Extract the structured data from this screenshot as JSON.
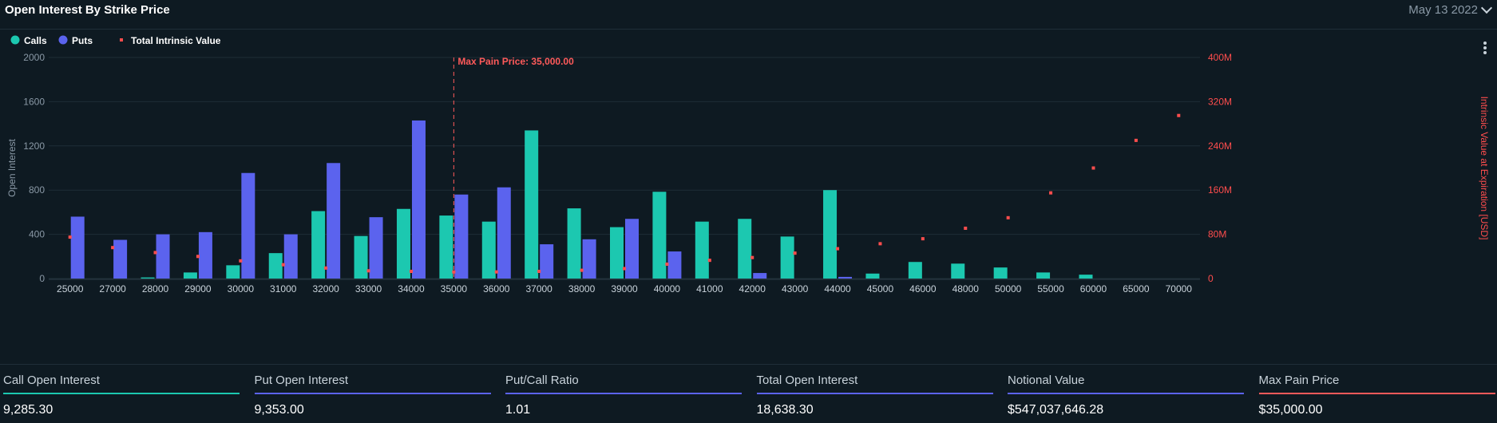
{
  "header": {
    "title": "Open Interest By Strike Price",
    "date": "May 13 2022"
  },
  "legend": [
    {
      "label": "Calls",
      "color": "#1cc8b0",
      "shape": "circle"
    },
    {
      "label": "Puts",
      "color": "#5b63ee",
      "shape": "circle"
    },
    {
      "label": "Total Intrinsic Value",
      "color": "#ff4d4d",
      "shape": "square"
    }
  ],
  "chart_data": {
    "type": "bar",
    "categories": [
      "25000",
      "27000",
      "28000",
      "29000",
      "30000",
      "31000",
      "32000",
      "33000",
      "34000",
      "35000",
      "36000",
      "37000",
      "38000",
      "39000",
      "40000",
      "41000",
      "42000",
      "43000",
      "44000",
      "45000",
      "46000",
      "48000",
      "50000",
      "55000",
      "60000",
      "65000",
      "70000"
    ],
    "series": [
      {
        "name": "Calls",
        "color": "#1cc8b0",
        "axis": "left",
        "values": [
          0,
          0,
          10,
          55,
          120,
          230,
          610,
          385,
          630,
          570,
          515,
          1340,
          635,
          465,
          785,
          515,
          540,
          380,
          800,
          45,
          150,
          135,
          100,
          55,
          35,
          0,
          0
        ]
      },
      {
        "name": "Puts",
        "color": "#5b63ee",
        "axis": "left",
        "values": [
          560,
          350,
          400,
          420,
          955,
          400,
          1045,
          555,
          1430,
          760,
          825,
          310,
          355,
          540,
          245,
          0,
          50,
          0,
          15,
          0,
          0,
          0,
          0,
          0,
          0,
          0,
          0
        ]
      },
      {
        "name": "Total Intrinsic Value",
        "color": "#ff4d4d",
        "axis": "right",
        "type": "scatter",
        "values": [
          75,
          56,
          47,
          40,
          32,
          25,
          19,
          14,
          13,
          12,
          12,
          13,
          15,
          18,
          26,
          33,
          38,
          46,
          54,
          63,
          72,
          91,
          110,
          155,
          200,
          250,
          295
        ]
      }
    ],
    "ylabel": "Open Interest",
    "ylim": [
      0,
      2000
    ],
    "yticks": [
      "0",
      "400",
      "800",
      "1200",
      "1600",
      "2000"
    ],
    "y2label": "Intrinsic Value at Expiration [USD]",
    "y2lim": [
      0,
      400
    ],
    "y2ticks": [
      "0",
      "80M",
      "160M",
      "240M",
      "320M",
      "400M"
    ],
    "grid": true,
    "legend_position": "top-left",
    "max_pain": {
      "category": "35000",
      "label": "Max Pain Price: 35,000.00"
    }
  },
  "stats": [
    {
      "label": "Call Open Interest",
      "value": "9,285.30",
      "color": "#1cc8b0"
    },
    {
      "label": "Put Open Interest",
      "value": "9,353.00",
      "color": "#5b63ee"
    },
    {
      "label": "Put/Call Ratio",
      "value": "1.01",
      "color": "#5b63ee"
    },
    {
      "label": "Total Open Interest",
      "value": "18,638.30",
      "color": "#5b63ee"
    },
    {
      "label": "Notional Value",
      "value": "$547,037,646.28",
      "color": "#5b63ee"
    },
    {
      "label": "Max Pain Price",
      "value": "$35,000.00",
      "color": "#ff5a5a"
    }
  ]
}
